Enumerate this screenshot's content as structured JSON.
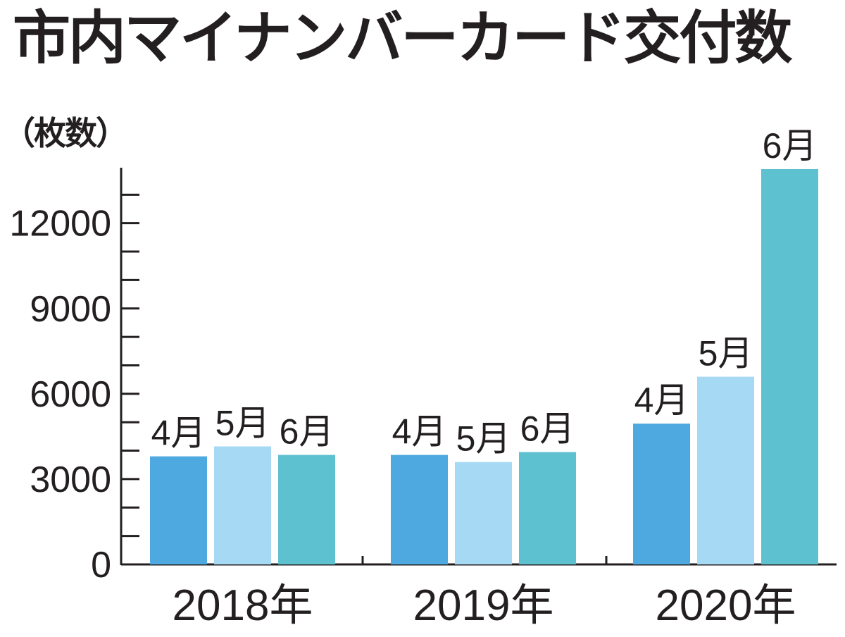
{
  "chart_data": {
    "type": "bar",
    "title": "市内マイナンバーカード交付数",
    "ylabel": "（枚数）",
    "xlabel": "",
    "ylim": [
      0,
      13900
    ],
    "yticks": [
      0,
      3000,
      6000,
      9000,
      12000
    ],
    "minor_tick_step": 1000,
    "categories": [
      "2018年",
      "2019年",
      "2020年"
    ],
    "series": [
      {
        "name": "4月",
        "color": "#4da9df",
        "values": [
          3800,
          3850,
          4950
        ]
      },
      {
        "name": "5月",
        "color": "#a6d9f4",
        "values": [
          4150,
          3600,
          6600
        ]
      },
      {
        "name": "6月",
        "color": "#5ec1cf",
        "values": [
          3850,
          3950,
          13900
        ]
      }
    ],
    "grid": false,
    "legend": "none"
  }
}
